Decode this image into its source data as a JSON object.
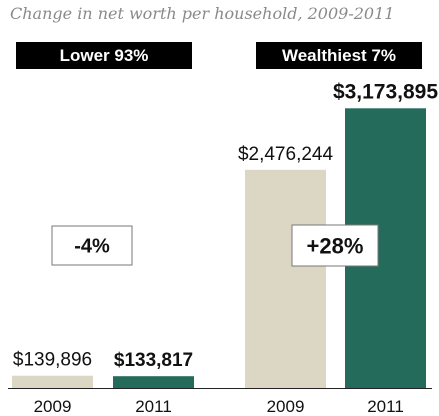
{
  "chart_data": {
    "type": "bar",
    "title": "Change in net worth per household, 2009-2011",
    "groups": [
      {
        "label": "Lower 93%",
        "change": "-4%",
        "bars": [
          {
            "x": "2009",
            "value": 139896,
            "label": "$139,896"
          },
          {
            "x": "2011",
            "value": 133817,
            "label": "$133,817"
          }
        ]
      },
      {
        "label": "Wealthiest 7%",
        "change": "+28%",
        "bars": [
          {
            "x": "2009",
            "value": 2476244,
            "label": "$2,476,244"
          },
          {
            "x": "2011",
            "value": 3173895,
            "label": "$3,173,895"
          }
        ]
      }
    ],
    "series": [
      {
        "name": "2009",
        "color": "#dcd7c4"
      },
      {
        "name": "2011",
        "color": "#256b5c"
      }
    ],
    "ylim": [
      0,
      3450000
    ],
    "grid": false,
    "legend": "none"
  }
}
